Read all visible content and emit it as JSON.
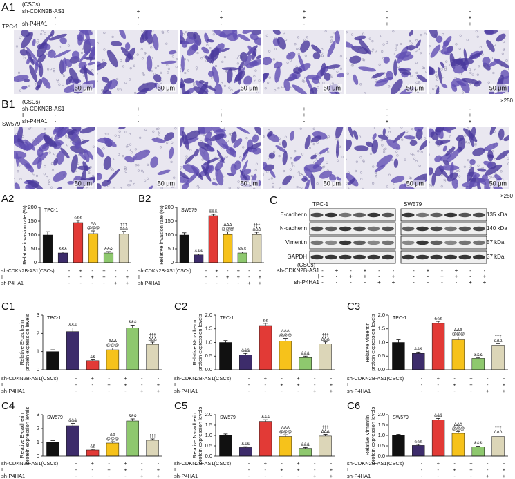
{
  "micrographs": [
    {
      "label": "A1",
      "cell_line": "TPC-1",
      "header": "(CSCs)",
      "rows": [
        {
          "name": "sh-CDKN2B-AS1",
          "signs": [
            "-",
            "+",
            "-",
            "+",
            "-",
            "-"
          ]
        },
        {
          "name": null,
          "signs": [
            "-",
            "-",
            "+",
            "+",
            "-",
            "+"
          ]
        },
        {
          "name": "sh-P4HA1",
          "signs": [
            "-",
            "-",
            "-",
            "-",
            "+",
            "+"
          ]
        }
      ],
      "scale_labels": [
        "50 μm",
        "50 μm",
        "50 μm",
        "50 μm",
        "50 μm",
        "50 μm"
      ],
      "magnification": "×250"
    },
    {
      "label": "B1",
      "cell_line": "SW579",
      "header": "(CSCs)",
      "rows": [
        {
          "name": "sh-CDKN2B-AS1",
          "signs": [
            "-",
            "+",
            "-",
            "+",
            "-",
            "-"
          ]
        },
        {
          "name": "I",
          "signs": [
            "-",
            "-",
            "+",
            "+",
            "-",
            "+"
          ]
        },
        {
          "name": "sh-P4HA1",
          "signs": [
            "-",
            "-",
            "-",
            "-",
            "+",
            "+"
          ]
        }
      ],
      "scale_labels": [
        "50 μm",
        "50 μm",
        "50 μm",
        "50 μm",
        "50 μm",
        "50 μm"
      ],
      "magnification": "×250"
    }
  ],
  "bar_conditions": [
    {
      "name": "sh-CDKN2B-AS1(CSCs)",
      "signs": [
        "-",
        "+",
        "-",
        "+",
        "-",
        "-"
      ]
    },
    {
      "name": "I",
      "signs": [
        "-",
        "-",
        "+",
        "+",
        "-",
        "+"
      ]
    },
    {
      "name": "sh-P4HA1",
      "signs": [
        "-",
        "-",
        "-",
        "-",
        "+",
        "+"
      ]
    }
  ],
  "western_blot": {
    "label": "C",
    "groups": [
      "TPC-1",
      "SW579"
    ],
    "proteins": [
      "E-cadherin",
      "N-cadherin",
      "Vimentin",
      "GAPDH"
    ],
    "sizes": [
      "135 kDa",
      "140 kDa",
      "57 kDa",
      "37 kDa"
    ],
    "header": "(CSCs)",
    "rows": [
      {
        "name": "sh-CDKN2B-AS1",
        "signs": [
          "-",
          "+",
          "-",
          "+",
          "-",
          "-"
        ]
      },
      {
        "name": "I",
        "signs": [
          "-",
          "-",
          "+",
          "+",
          "-",
          "+"
        ]
      },
      {
        "name": "sh-P4HA1",
        "signs": [
          "-",
          "-",
          "-",
          "-",
          "+",
          "+"
        ]
      }
    ]
  },
  "chart_data": [
    {
      "type": "bar",
      "label": "A2",
      "subtitle": "TPC-1",
      "ylabel": [
        "Relative invasion rate (%)"
      ],
      "ylim": [
        0,
        200
      ],
      "yticks": [
        0,
        50,
        100,
        150,
        200
      ],
      "colors": [
        "#111111",
        "#3d2c6b",
        "#e23a36",
        "#f6c21b",
        "#8ec86e",
        "#dcd6b8"
      ],
      "values": [
        100,
        35,
        145,
        105,
        35,
        103
      ],
      "errors": [
        12,
        4,
        8,
        10,
        5,
        10
      ],
      "annotations": [
        null,
        [
          "&&&"
        ],
        [
          "&&&"
        ],
        [
          "ΔΔ",
          "@@@"
        ],
        [
          "&&&"
        ],
        [
          "†††",
          "ΔΔΔ"
        ]
      ]
    },
    {
      "type": "bar",
      "label": "B2",
      "subtitle": "SW579",
      "ylabel": [
        "Relative invasion rate (%)"
      ],
      "ylim": [
        0,
        200
      ],
      "yticks": [
        0,
        50,
        100,
        150,
        200
      ],
      "colors": [
        "#111111",
        "#3d2c6b",
        "#e23a36",
        "#f6c21b",
        "#8ec86e",
        "#dcd6b8"
      ],
      "values": [
        100,
        28,
        170,
        102,
        35,
        102
      ],
      "errors": [
        8,
        3,
        5,
        10,
        4,
        8
      ],
      "annotations": [
        null,
        [
          "&&&"
        ],
        [
          "&&&"
        ],
        [
          "ΔΔΔ",
          "@@@"
        ],
        [
          "&&&"
        ],
        [
          "†††",
          "ΔΔΔ"
        ]
      ]
    },
    {
      "type": "bar",
      "label": "C1",
      "subtitle": "TPC-1",
      "ylabel": [
        "Relative E-cadherin",
        "protein expression levels"
      ],
      "ylim": [
        0,
        3
      ],
      "yticks": [
        0,
        1,
        2,
        3
      ],
      "colors": [
        "#111111",
        "#3d2c6b",
        "#e23a36",
        "#f6c21b",
        "#8ec86e",
        "#dcd6b8"
      ],
      "values": [
        1.0,
        2.1,
        0.5,
        1.1,
        2.3,
        1.4
      ],
      "errors": [
        0.1,
        0.2,
        0.05,
        0.1,
        0.15,
        0.12
      ],
      "annotations": [
        null,
        [
          "&&&"
        ],
        [
          "&&"
        ],
        [
          "ΔΔΔ",
          "@@@"
        ],
        [
          "&&&"
        ],
        [
          "†††",
          "ΔΔΔ"
        ]
      ]
    },
    {
      "type": "bar",
      "label": "C2",
      "subtitle": "TPC-1",
      "ylabel": [
        "Relative N-cadherin",
        "protein expression levels"
      ],
      "ylim": [
        0,
        2
      ],
      "yticks": [
        {
          "value": 0,
          "label": "0.0"
        },
        0.5,
        {
          "value": 1,
          "label": "1.0"
        },
        1.5,
        {
          "value": 2,
          "label": "2.0"
        }
      ],
      "colors": [
        "#111111",
        "#3d2c6b",
        "#e23a36",
        "#f6c21b",
        "#8ec86e",
        "#dcd6b8"
      ],
      "values": [
        1.0,
        0.55,
        1.62,
        1.05,
        0.45,
        0.95
      ],
      "errors": [
        0.07,
        0.05,
        0.08,
        0.1,
        0.05,
        0.07
      ],
      "annotations": [
        null,
        [
          "&&&"
        ],
        [
          "&&"
        ],
        [
          "ΔΔΔ",
          "@@@"
        ],
        [
          "&&&"
        ],
        [
          "†††",
          "ΔΔΔ"
        ]
      ]
    },
    {
      "type": "bar",
      "label": "C3",
      "subtitle": "TPC-1",
      "ylabel": [
        "Relative Vimentin",
        "protein expression levels"
      ],
      "ylim": [
        0,
        2
      ],
      "yticks": [
        {
          "value": 0,
          "label": "0.0"
        },
        0.5,
        {
          "value": 1,
          "label": "1.0"
        },
        1.5,
        {
          "value": 2,
          "label": "2.0"
        }
      ],
      "colors": [
        "#111111",
        "#3d2c6b",
        "#e23a36",
        "#f6c21b",
        "#8ec86e",
        "#dcd6b8"
      ],
      "values": [
        1.0,
        0.6,
        1.7,
        1.1,
        0.42,
        0.9
      ],
      "errors": [
        0.1,
        0.05,
        0.07,
        0.1,
        0.03,
        0.07
      ],
      "annotations": [
        null,
        [
          "&&&"
        ],
        [
          "&&&"
        ],
        [
          "ΔΔΔ",
          "@@@"
        ],
        [
          "&&&"
        ],
        [
          "†††",
          "ΔΔΔ"
        ]
      ]
    },
    {
      "type": "bar",
      "label": "C4",
      "subtitle": "SW579",
      "ylabel": [
        "Relative E-cadherin",
        "protein expression levels"
      ],
      "ylim": [
        0,
        3
      ],
      "yticks": [
        0,
        1,
        2,
        3
      ],
      "colors": [
        "#111111",
        "#3d2c6b",
        "#e23a36",
        "#f6c21b",
        "#8ec86e",
        "#dcd6b8"
      ],
      "values": [
        1.0,
        2.2,
        0.45,
        0.95,
        2.55,
        1.15
      ],
      "errors": [
        0.12,
        0.18,
        0.05,
        0.1,
        0.15,
        0.1
      ],
      "annotations": [
        null,
        [
          "&&&"
        ],
        [
          "&&"
        ],
        [
          "ΔΔ",
          "@@@"
        ],
        [
          "&&&"
        ],
        [
          "†††"
        ]
      ]
    },
    {
      "type": "bar",
      "label": "C5",
      "subtitle": "SW579",
      "ylabel": [
        "Relative N-cadherin",
        "protein expression levels"
      ],
      "ylim": [
        0,
        2
      ],
      "yticks": [
        {
          "value": 0,
          "label": "0.0"
        },
        0.5,
        {
          "value": 1,
          "label": "1.0"
        },
        1.5,
        {
          "value": 2,
          "label": "2.0"
        }
      ],
      "colors": [
        "#111111",
        "#3d2c6b",
        "#e23a36",
        "#f6c21b",
        "#8ec86e",
        "#dcd6b8"
      ],
      "values": [
        1.0,
        0.42,
        1.68,
        0.95,
        0.38,
        0.97
      ],
      "errors": [
        0.07,
        0.04,
        0.08,
        0.08,
        0.04,
        0.08
      ],
      "annotations": [
        null,
        [
          "&&&"
        ],
        [
          "&&&"
        ],
        [
          "ΔΔΔ",
          "@@@"
        ],
        [
          "&&&"
        ],
        [
          "†††",
          "ΔΔΔ"
        ]
      ]
    },
    {
      "type": "bar",
      "label": "C6",
      "subtitle": "SW579",
      "ylabel": [
        "Relative Vimentin",
        "protein expression levels"
      ],
      "ylim": [
        0,
        2
      ],
      "yticks": [
        {
          "value": 0,
          "label": "0.0"
        },
        0.5,
        {
          "value": 1,
          "label": "1.0"
        },
        1.5,
        {
          "value": 2,
          "label": "2.0"
        }
      ],
      "colors": [
        "#111111",
        "#3d2c6b",
        "#e23a36",
        "#f6c21b",
        "#8ec86e",
        "#dcd6b8"
      ],
      "values": [
        1.0,
        0.52,
        1.75,
        1.1,
        0.45,
        0.95
      ],
      "errors": [
        0.05,
        0.05,
        0.07,
        0.09,
        0.03,
        0.07
      ],
      "annotations": [
        null,
        [
          "&&&"
        ],
        [
          "&&&"
        ],
        [
          "ΔΔΔ",
          "@@@"
        ],
        [
          "&&&"
        ],
        [
          "†††",
          "ΔΔΔ"
        ]
      ]
    }
  ]
}
